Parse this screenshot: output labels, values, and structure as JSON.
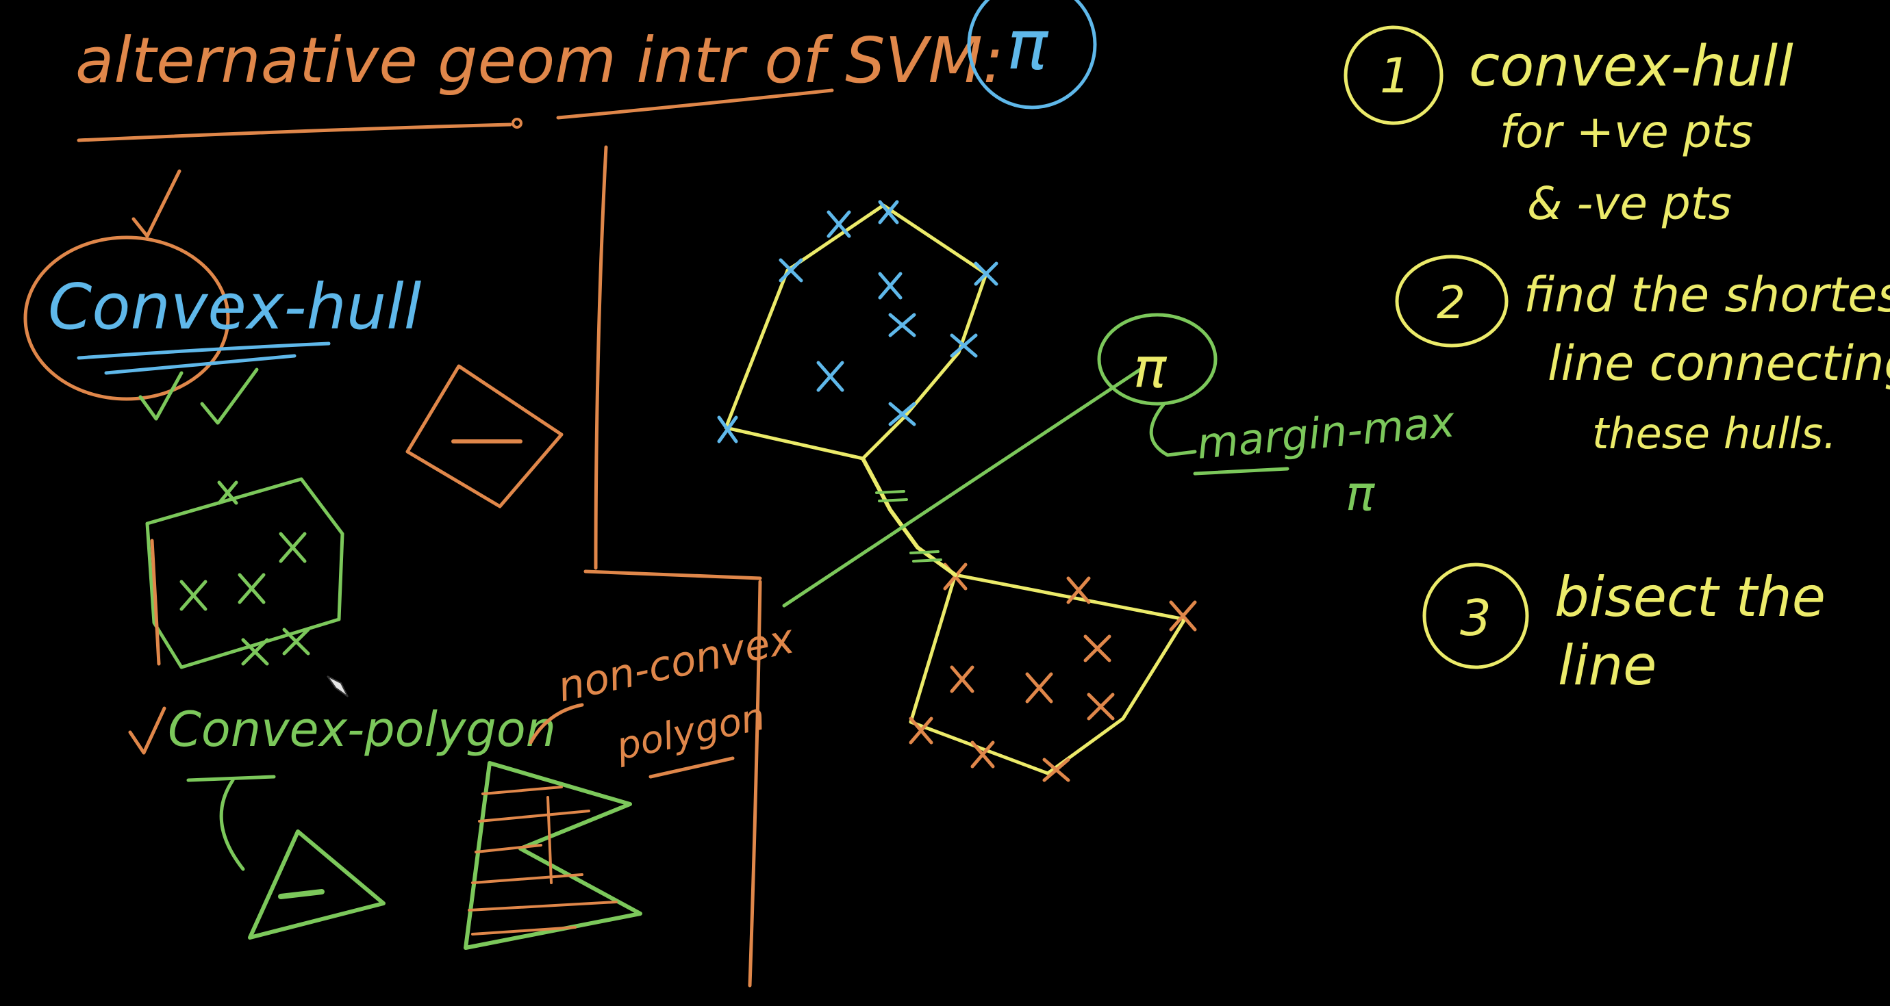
{
  "colors": {
    "background": "#000000",
    "orange": "#E0874A",
    "blue": "#5FB8EA",
    "green": "#7CC85B",
    "yellow": "#ECEB6A"
  },
  "title": {
    "text": "alternative geom intr of SVM:",
    "pi": "π"
  },
  "left": {
    "convex_hull": "Convex-hull",
    "check": "✓",
    "convex_polygon": "Convex-polygon",
    "non_convex_line1": "non-convex",
    "non_convex_line2": "polygon"
  },
  "middle": {
    "pi": "π",
    "margin_max": "margin-max",
    "pi_below": "π"
  },
  "steps": [
    {
      "number": "1",
      "lines": [
        "convex-hull",
        "for +ve pts",
        "& -ve pts"
      ]
    },
    {
      "number": "2",
      "lines": [
        "find the shortest",
        "line connecting",
        "these hulls."
      ]
    },
    {
      "number": "3",
      "lines": [
        "bisect the",
        "line"
      ]
    }
  ]
}
